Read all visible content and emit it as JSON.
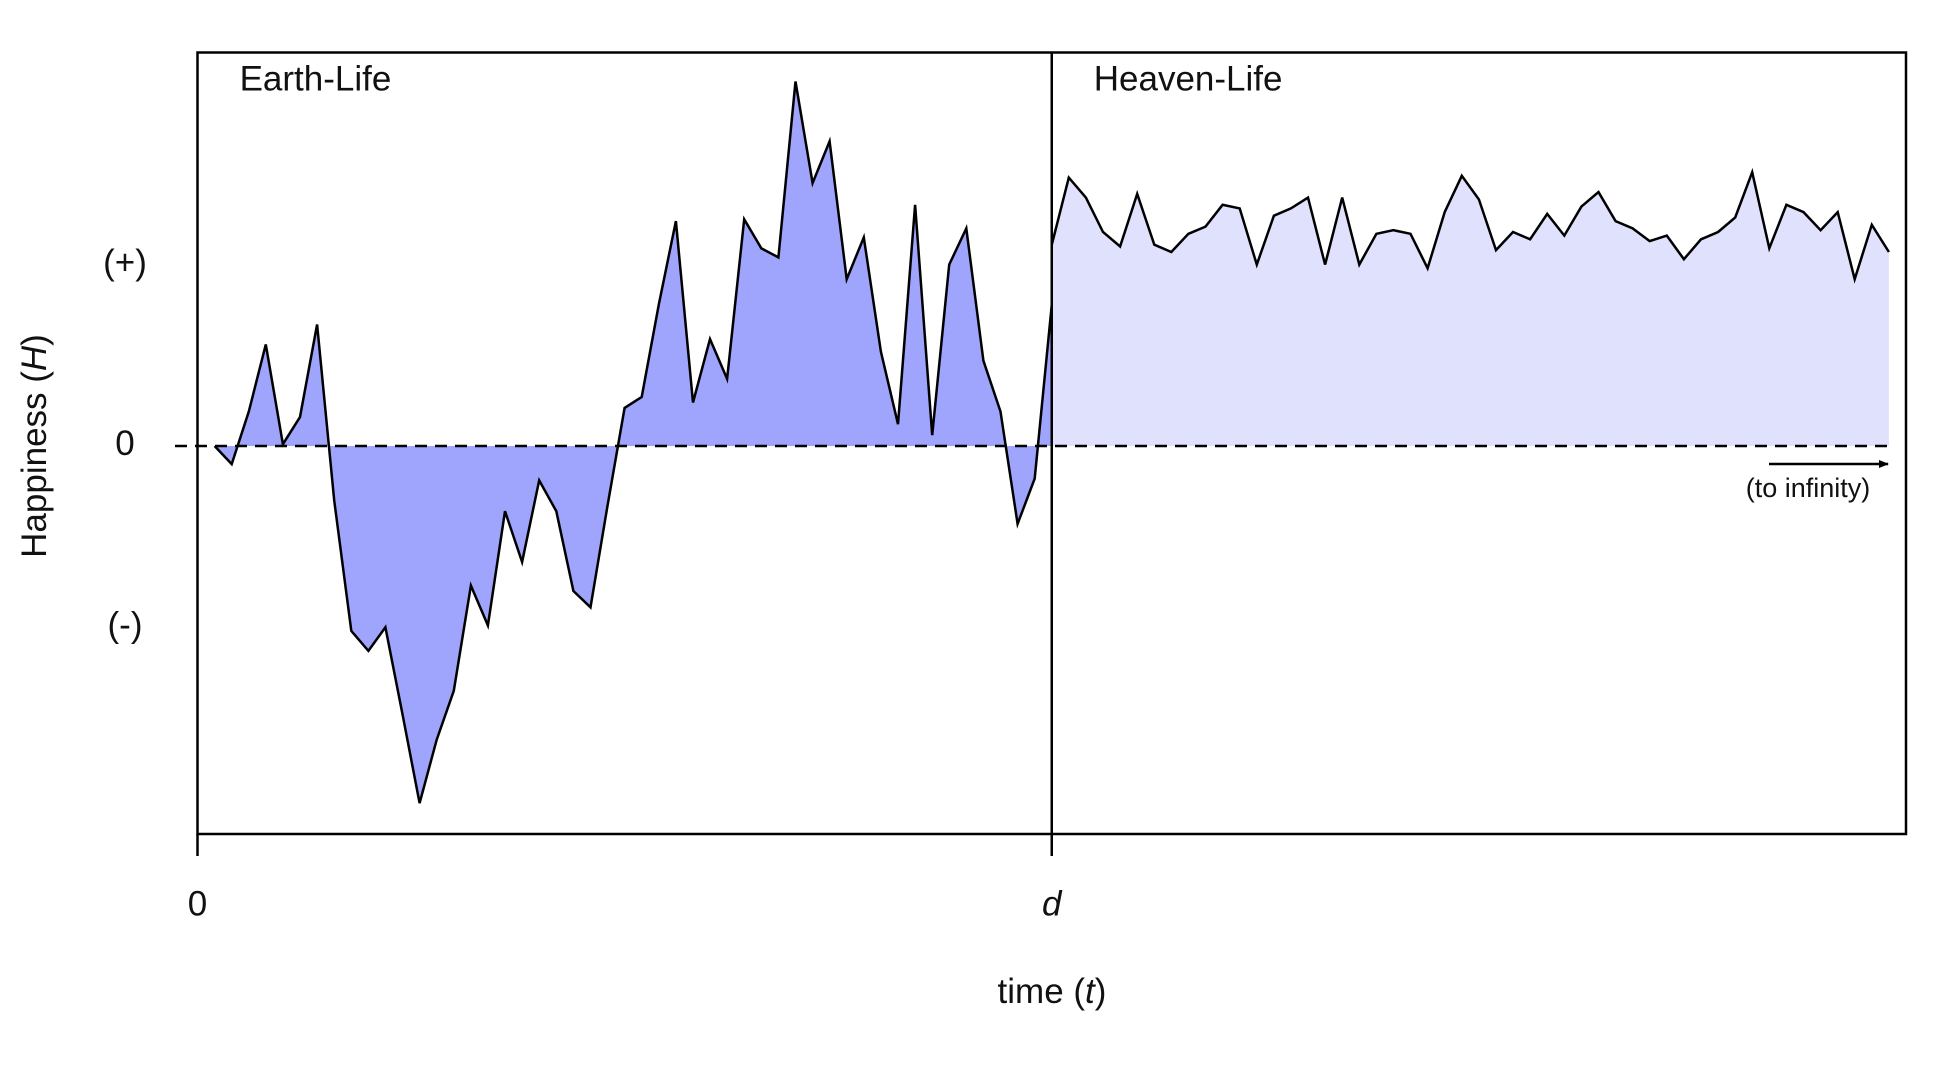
{
  "chart_data": {
    "type": "area",
    "xlabel_parts": [
      "time (",
      "t",
      ")"
    ],
    "ylabel_parts": [
      "Happiness (",
      "H",
      ")"
    ],
    "annotation": "(to infinity)",
    "xlim": [
      0,
      100
    ],
    "ylim": [
      -2.14,
      2.17
    ],
    "xticks": [
      0,
      {
        "value": 50,
        "label": "d"
      }
    ],
    "yticks": [
      {
        "value": 1,
        "label": "(+)"
      },
      0,
      {
        "value": -1,
        "label": "(-)"
      }
    ],
    "series": [
      {
        "name": "Earth-Life",
        "color": "#9fa4fc",
        "x": [
          1,
          2,
          3,
          4,
          5,
          6,
          7,
          8,
          9,
          10,
          11,
          12,
          13,
          14,
          15,
          16,
          17,
          18,
          19,
          20,
          21,
          22,
          23,
          24,
          25,
          26,
          27,
          28,
          29,
          30,
          31,
          32,
          33,
          34,
          35,
          36,
          37,
          38,
          39,
          40,
          41,
          42,
          43,
          44,
          45,
          46,
          47,
          48,
          49,
          50
        ],
        "values": [
          0,
          -0.1,
          0.19,
          0.56,
          0.01,
          0.16,
          0.67,
          -0.3,
          -1.02,
          -1.13,
          -1.0,
          -1.48,
          -1.97,
          -1.62,
          -1.35,
          -0.77,
          -0.99,
          -0.36,
          -0.64,
          -0.19,
          -0.36,
          -0.8,
          -0.89,
          -0.33,
          0.21,
          0.27,
          0.78,
          1.24,
          0.24,
          0.59,
          0.37,
          1.25,
          1.09,
          1.04,
          2.01,
          1.45,
          1.68,
          0.92,
          1.15,
          0.52,
          0.12,
          1.33,
          0.06,
          1.0,
          1.2,
          0.47,
          0.19,
          -0.43,
          -0.18,
          0.78
        ]
      },
      {
        "name": "Heaven-Life",
        "color": "#e0e1fd",
        "x": [
          50,
          51,
          52,
          53,
          54,
          55,
          56,
          57,
          58,
          59,
          60,
          61,
          62,
          63,
          64,
          65,
          66,
          67,
          68,
          69,
          70,
          71,
          72,
          73,
          74,
          75,
          76,
          77,
          78,
          79,
          80,
          81,
          82,
          83,
          84,
          85,
          86,
          87,
          88,
          89,
          90,
          91,
          92,
          93,
          94,
          95,
          96,
          97,
          98,
          99
        ],
        "values": [
          1.11,
          1.48,
          1.37,
          1.18,
          1.1,
          1.39,
          1.11,
          1.07,
          1.17,
          1.21,
          1.33,
          1.31,
          1.0,
          1.27,
          1.31,
          1.37,
          1.0,
          1.37,
          1.0,
          1.17,
          1.19,
          1.17,
          0.98,
          1.29,
          1.49,
          1.36,
          1.08,
          1.18,
          1.14,
          1.28,
          1.16,
          1.32,
          1.4,
          1.24,
          1.2,
          1.13,
          1.16,
          1.03,
          1.14,
          1.18,
          1.26,
          1.51,
          1.09,
          1.33,
          1.29,
          1.19,
          1.29,
          0.92,
          1.22,
          1.07
        ]
      }
    ]
  }
}
